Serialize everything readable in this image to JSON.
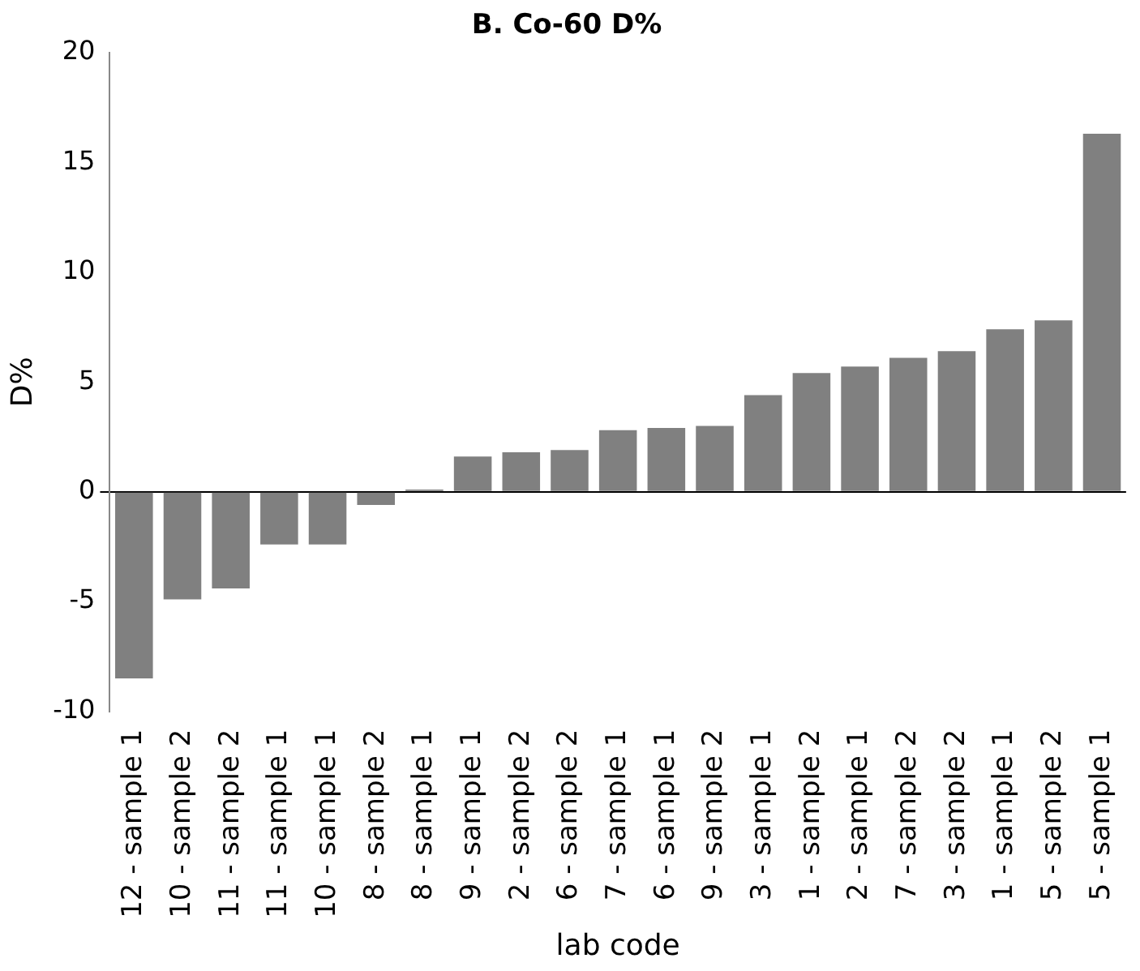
{
  "chart_data": {
    "type": "bar",
    "title": "B. Co-60 D%",
    "xlabel": "lab code",
    "ylabel": "D%",
    "categories": [
      "12 - sample 1",
      "10 - sample 2",
      "11 - sample 2",
      "11 - sample 1",
      "10 - sample 1",
      "8 - sample 2",
      "8 - sample 1",
      "9 - sample 1",
      "2 - sample 2",
      "6 - sample 2",
      "7 - sample 1",
      "6 - sample 1",
      "9 - sample 2",
      "3 - sample 1",
      "1 - sample 2",
      "2 - sample 1",
      "7 - sample 2",
      "3 - sample 2",
      "1 - sample 1",
      "5 - sample 2",
      "5 - sample 1"
    ],
    "values": [
      -8.5,
      -4.9,
      -4.4,
      -2.4,
      -2.4,
      -0.6,
      0.1,
      1.6,
      1.8,
      1.9,
      2.8,
      2.9,
      3.0,
      4.4,
      5.4,
      5.7,
      6.1,
      6.4,
      7.4,
      7.8,
      16.3
    ],
    "color": "#808080",
    "ylim": [
      -10,
      20
    ],
    "yticks": [
      -10,
      -5,
      0,
      5,
      10,
      15,
      20
    ],
    "legend": false
  }
}
